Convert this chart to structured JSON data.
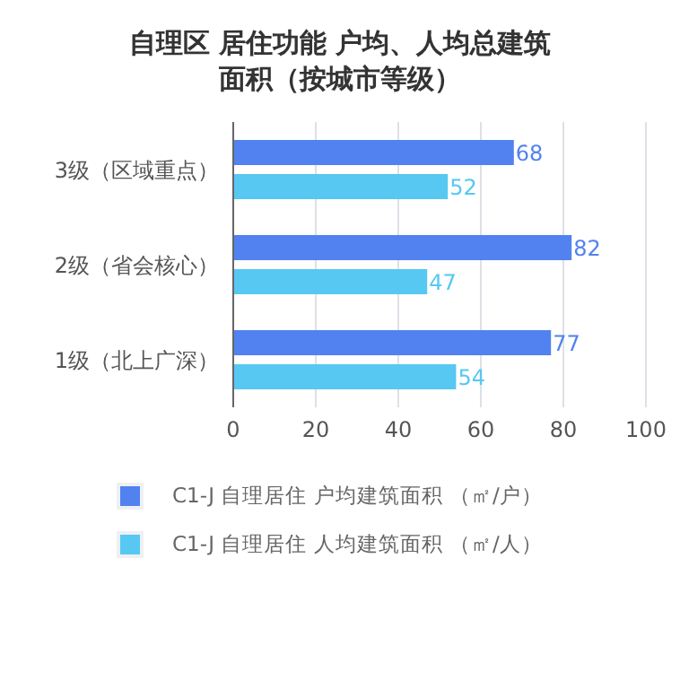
{
  "chart_data": {
    "type": "bar",
    "orientation": "horizontal",
    "title": "自理区 居住功能 户均、人均总建筑面积（按城市等级）",
    "categories": [
      "3级（区域重点）",
      "2级（省会核心）",
      "1级（北上广深）"
    ],
    "series": [
      {
        "name": "C1-J 自理居住 户均建筑面积 （㎡/户）",
        "color": "#5282f0",
        "values": [
          68,
          82,
          77
        ]
      },
      {
        "name": "C1-J 自理居住 人均建筑面积 （㎡/人）",
        "color": "#56c8f2",
        "values": [
          52,
          47,
          54
        ]
      }
    ],
    "xlim": [
      0,
      100
    ],
    "xticks": [
      0,
      20,
      40,
      60,
      80,
      100
    ],
    "grid": "x",
    "legend": "bottom",
    "data_labels": true
  }
}
